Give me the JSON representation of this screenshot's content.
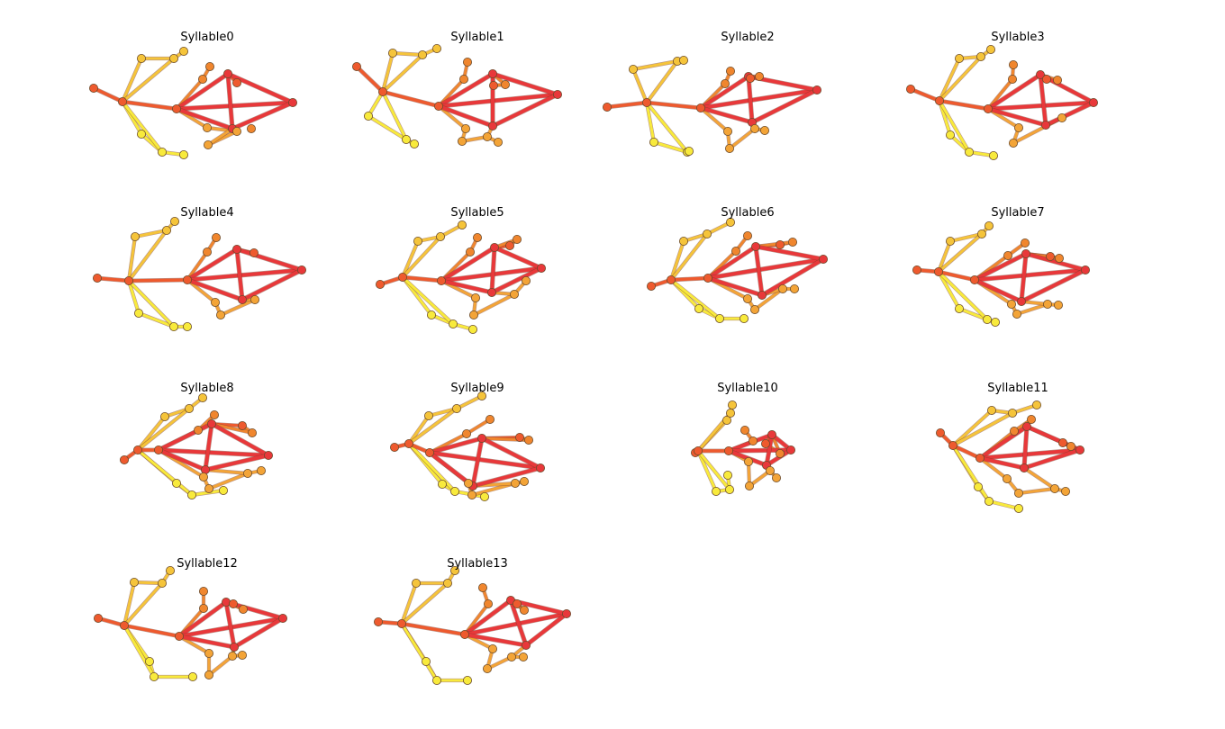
{
  "figure": {
    "panels": [
      {
        "title": "Syllable0"
      },
      {
        "title": "Syllable1"
      },
      {
        "title": "Syllable2"
      },
      {
        "title": "Syllable3"
      },
      {
        "title": "Syllable4"
      },
      {
        "title": "Syllable5"
      },
      {
        "title": "Syllable6"
      },
      {
        "title": "Syllable7"
      },
      {
        "title": "Syllable8"
      },
      {
        "title": "Syllable9"
      },
      {
        "title": "Syllable10"
      },
      {
        "title": "Syllable11"
      },
      {
        "title": "Syllable12"
      },
      {
        "title": "Syllable13"
      }
    ],
    "colors": {
      "red": "#e8383a",
      "orange_red": "#ee5a2e",
      "orange": "#f0862e",
      "amber": "#f3a437",
      "gold": "#f5c43a",
      "yellow": "#f8ea3c",
      "node_stroke": "#6a4a2a",
      "edge_stroke": "#7a3a2a"
    }
  }
}
